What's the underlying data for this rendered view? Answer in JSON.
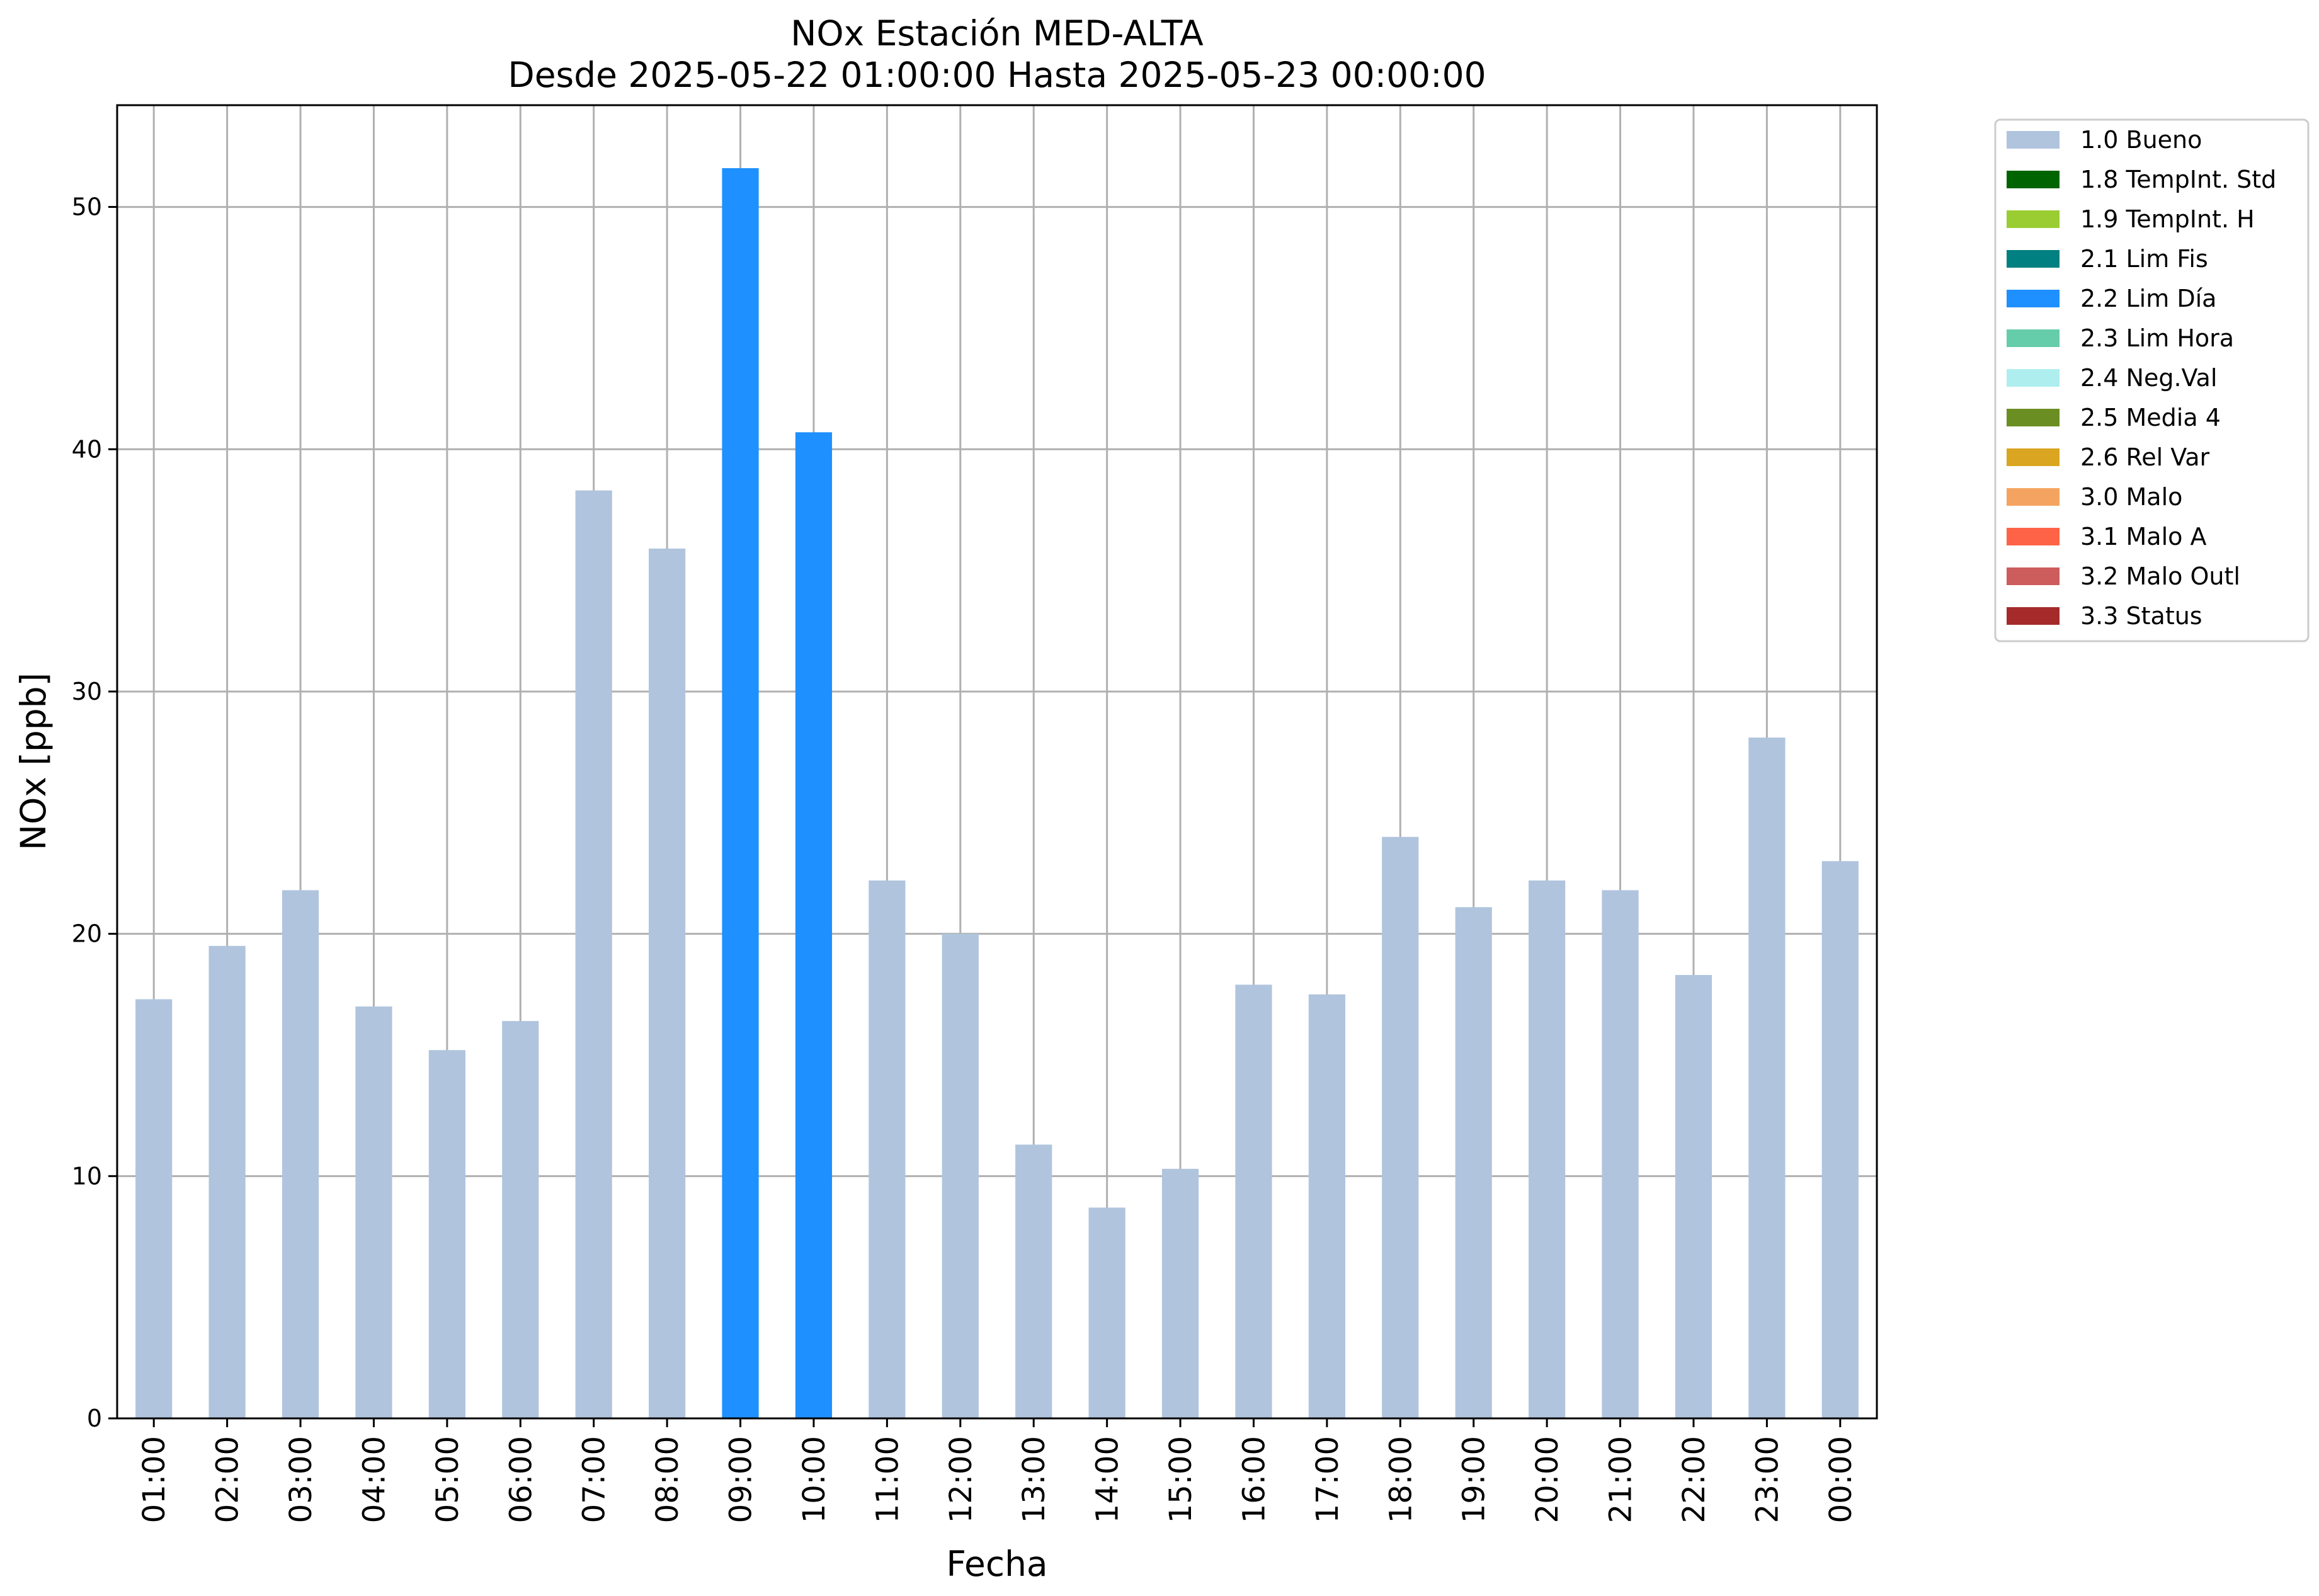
{
  "chart_data": {
    "type": "bar",
    "title": "NOx Estación MED-ALTA",
    "subtitle": "Desde 2025-05-22 01:00:00 Hasta 2025-05-23 00:00:00",
    "xlabel": "Fecha",
    "ylabel": "NOx [ppb]",
    "ylim": [
      0,
      54.2
    ],
    "yticks": [
      0,
      10,
      20,
      30,
      40,
      50
    ],
    "grid": true,
    "legend_position": "outside-top-right",
    "categories": [
      "01:00",
      "02:00",
      "03:00",
      "04:00",
      "05:00",
      "06:00",
      "07:00",
      "08:00",
      "09:00",
      "10:00",
      "11:00",
      "12:00",
      "13:00",
      "14:00",
      "15:00",
      "16:00",
      "17:00",
      "18:00",
      "19:00",
      "20:00",
      "21:00",
      "22:00",
      "23:00",
      "00:00"
    ],
    "values": [
      17.3,
      19.5,
      21.8,
      17.0,
      15.2,
      16.4,
      38.3,
      35.9,
      51.6,
      40.7,
      22.2,
      20.0,
      11.3,
      8.7,
      10.3,
      17.9,
      17.5,
      24.0,
      21.1,
      22.2,
      21.8,
      18.3,
      28.1,
      23.0
    ],
    "flags": [
      "1.0 Bueno",
      "1.0 Bueno",
      "1.0 Bueno",
      "1.0 Bueno",
      "1.0 Bueno",
      "1.0 Bueno",
      "1.0 Bueno",
      "1.0 Bueno",
      "2.2 Lim Día",
      "2.2 Lim Día",
      "1.0 Bueno",
      "1.0 Bueno",
      "1.0 Bueno",
      "1.0 Bueno",
      "1.0 Bueno",
      "1.0 Bueno",
      "1.0 Bueno",
      "1.0 Bueno",
      "1.0 Bueno",
      "1.0 Bueno",
      "1.0 Bueno",
      "1.0 Bueno",
      "1.0 Bueno",
      "1.0 Bueno"
    ],
    "legend": [
      {
        "label": "1.0 Bueno",
        "color": "#b0c4de"
      },
      {
        "label": "1.8 TempInt. Std",
        "color": "#006400"
      },
      {
        "label": "1.9 TempInt. H",
        "color": "#9acd32"
      },
      {
        "label": "2.1 Lim Fis",
        "color": "#008080"
      },
      {
        "label": "2.2 Lim Día",
        "color": "#1e90ff"
      },
      {
        "label": "2.3 Lim Hora",
        "color": "#66cdaa"
      },
      {
        "label": "2.4 Neg.Val",
        "color": "#afeeee"
      },
      {
        "label": "2.5 Media 4",
        "color": "#6b8e23"
      },
      {
        "label": "2.6 Rel Var",
        "color": "#daa520"
      },
      {
        "label": "3.0 Malo",
        "color": "#f4a460"
      },
      {
        "label": "3.1 Malo A",
        "color": "#ff6347"
      },
      {
        "label": "3.2 Malo Outl",
        "color": "#cd5c5c"
      },
      {
        "label": "3.3 Status",
        "color": "#a52a2a"
      }
    ]
  }
}
